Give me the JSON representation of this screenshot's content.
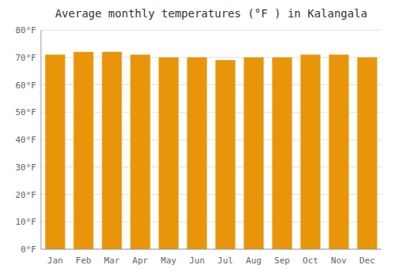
{
  "chart_data": {
    "type": "bar",
    "title": "Average monthly temperatures (°F ) in Kalangala",
    "categories": [
      "Jan",
      "Feb",
      "Mar",
      "Apr",
      "May",
      "Jun",
      "Jul",
      "Aug",
      "Sep",
      "Oct",
      "Nov",
      "Dec"
    ],
    "values": [
      71,
      72,
      72,
      71,
      70,
      70,
      69,
      70,
      70,
      71,
      71,
      70
    ],
    "color": "#E8950A",
    "ylim": [
      0,
      80
    ],
    "yticks": [
      {
        "value": 0,
        "label": "0°F"
      },
      {
        "value": 10,
        "label": "10°F"
      },
      {
        "value": 20,
        "label": "20°F"
      },
      {
        "value": 30,
        "label": "30°F"
      },
      {
        "value": 40,
        "label": "40°F"
      },
      {
        "value": 50,
        "label": "50°F"
      },
      {
        "value": 60,
        "label": "60°F"
      },
      {
        "value": 70,
        "label": "70°F"
      },
      {
        "value": 80,
        "label": "80°F"
      }
    ],
    "grid": true
  }
}
